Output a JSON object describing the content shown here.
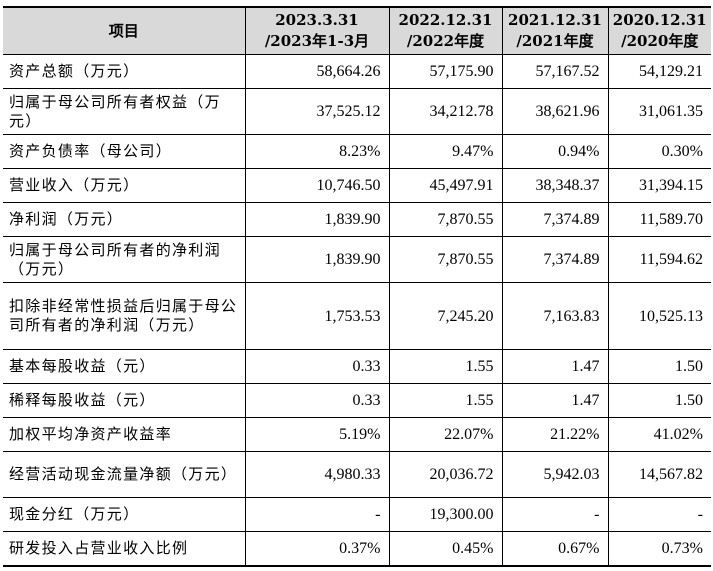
{
  "table": {
    "headers": [
      {
        "line1": "项目",
        "line2": ""
      },
      {
        "line1": "2023.3.31",
        "line2": "/2023年1-3月"
      },
      {
        "line1": "2022.12.31",
        "line2": "/2022年度"
      },
      {
        "line1": "2021.12.31",
        "line2": "/2021年度"
      },
      {
        "line1": "2020.12.31",
        "line2": "/2020年度"
      }
    ],
    "rows": [
      {
        "label": "资产总额（万元）",
        "values": [
          "58,664.26",
          "57,175.90",
          "57,167.52",
          "54,129.21"
        ]
      },
      {
        "label": "归属于母公司所有者权益（万元）",
        "values": [
          "37,525.12",
          "34,212.78",
          "38,621.96",
          "31,061.35"
        ]
      },
      {
        "label": "资产负债率（母公司）",
        "values": [
          "8.23%",
          "9.47%",
          "0.94%",
          "0.30%"
        ]
      },
      {
        "label": "营业收入（万元）",
        "values": [
          "10,746.50",
          "45,497.91",
          "38,348.37",
          "31,394.15"
        ]
      },
      {
        "label": "净利润（万元）",
        "values": [
          "1,839.90",
          "7,870.55",
          "7,374.89",
          "11,589.70"
        ]
      },
      {
        "label": "归属于母公司所有者的净利润（万元）",
        "values": [
          "1,839.90",
          "7,870.55",
          "7,374.89",
          "11,594.62"
        ]
      },
      {
        "label": "扣除非经常性损益后归属于母公司所有者的净利润（万元）",
        "values": [
          "1,753.53",
          "7,245.20",
          "7,163.83",
          "10,525.13"
        ]
      },
      {
        "label": "基本每股收益（元）",
        "values": [
          "0.33",
          "1.55",
          "1.47",
          "1.50"
        ]
      },
      {
        "label": "稀释每股收益（元）",
        "values": [
          "0.33",
          "1.55",
          "1.47",
          "1.50"
        ]
      },
      {
        "label": "加权平均净资产收益率",
        "values": [
          "5.19%",
          "22.07%",
          "21.22%",
          "41.02%"
        ]
      },
      {
        "label": "经营活动现金流量净额（万元）",
        "values": [
          "4,980.33",
          "20,036.72",
          "5,942.03",
          "14,567.82"
        ]
      },
      {
        "label": "现金分红（万元）",
        "values": [
          "-",
          "19,300.00",
          "-",
          "-"
        ]
      },
      {
        "label": "研发投入占营业收入比例",
        "values": [
          "0.37%",
          "0.45%",
          "0.67%",
          "0.73%"
        ]
      }
    ]
  }
}
